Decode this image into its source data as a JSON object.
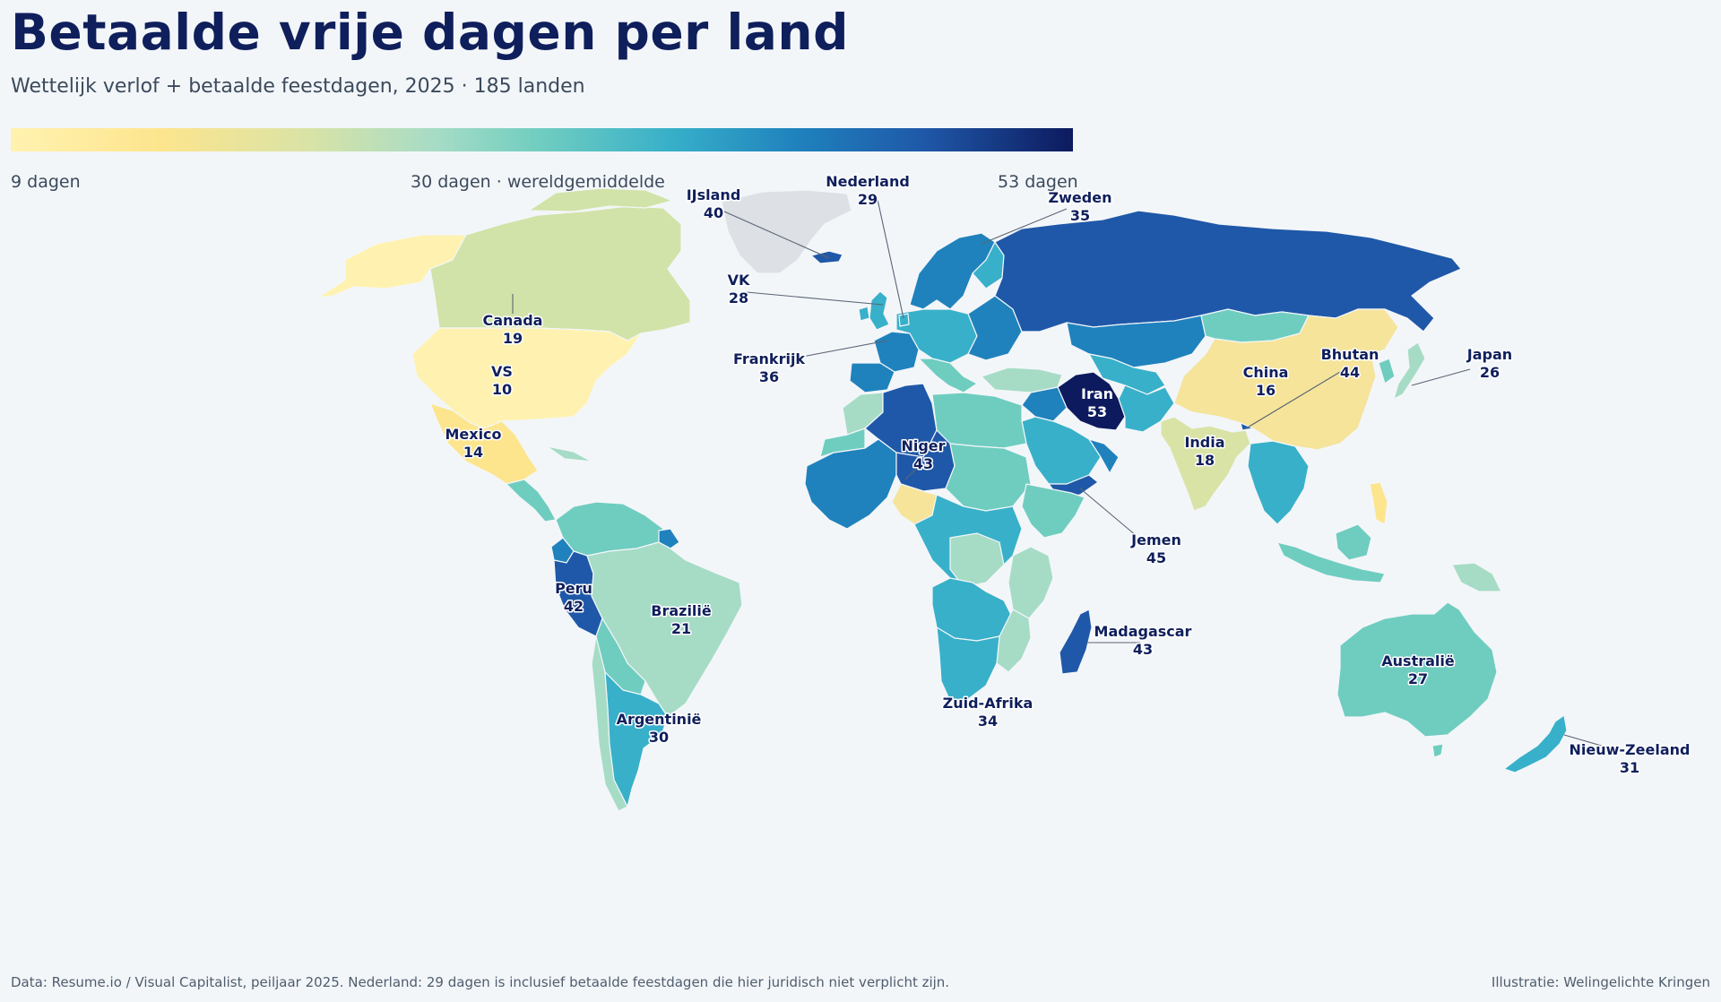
{
  "title": "Betaalde vrije dagen per land",
  "subtitle": "Wettelijk verlof + betaalde feestdagen, 2025 · 185 landen",
  "legend": {
    "min_label": "9 dagen",
    "mid_label": "30 dagen · wereldgemiddelde",
    "max_label": "53 dagen",
    "min_value": 9,
    "mid_value": 30,
    "max_value": 53,
    "colors": [
      "#fff2b0",
      "#fde58e",
      "#d9e3a6",
      "#a6dcc6",
      "#6fcdc0",
      "#38b0c9",
      "#1f82bd",
      "#1f58a8",
      "#0d1a5e"
    ]
  },
  "no_data_color": "#dde0e4",
  "labels": {
    "canada": {
      "name": "Canada",
      "days": "19"
    },
    "vs": {
      "name": "VS",
      "days": "10"
    },
    "mexico": {
      "name": "Mexico",
      "days": "14"
    },
    "peru": {
      "name": "Peru",
      "days": "42"
    },
    "brazilie": {
      "name": "Brazilië",
      "days": "21"
    },
    "argentinie": {
      "name": "Argentinië",
      "days": "30"
    },
    "ijsland": {
      "name": "IJsland",
      "days": "40"
    },
    "vk": {
      "name": "VK",
      "days": "28"
    },
    "frankrijk": {
      "name": "Frankrijk",
      "days": "36"
    },
    "nederland": {
      "name": "Nederland",
      "days": "29"
    },
    "zweden": {
      "name": "Zweden",
      "days": "35"
    },
    "niger": {
      "name": "Niger",
      "days": "43"
    },
    "zuid_afrika": {
      "name": "Zuid-Afrika",
      "days": "34"
    },
    "madagascar": {
      "name": "Madagascar",
      "days": "43"
    },
    "jemen": {
      "name": "Jemen",
      "days": "45"
    },
    "iran": {
      "name": "Iran",
      "days": "53"
    },
    "india": {
      "name": "India",
      "days": "18"
    },
    "china": {
      "name": "China",
      "days": "16"
    },
    "bhutan": {
      "name": "Bhutan",
      "days": "44"
    },
    "japan": {
      "name": "Japan",
      "days": "26"
    },
    "australie": {
      "name": "Australië",
      "days": "27"
    },
    "nieuw_zeeland": {
      "name": "Nieuw-Zeeland",
      "days": "31"
    }
  },
  "footer": {
    "source": "Data: Resume.io / Visual Capitalist, peiljaar 2025. Nederland: 29 dagen is inclusief betaalde feestdagen die hier juridisch niet verplicht zijn.",
    "credit": "Illustratie: Welingelichte Kringen"
  }
}
